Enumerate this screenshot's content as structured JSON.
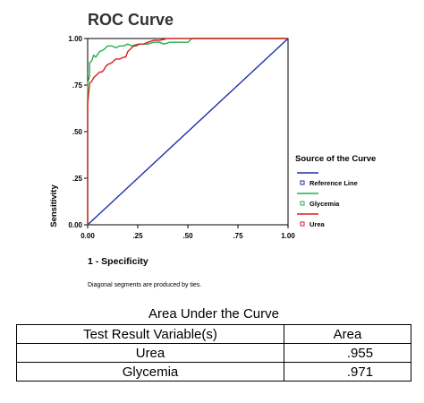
{
  "chart_data": {
    "type": "line",
    "title": "ROC Curve",
    "xlabel": "1 - Specificity",
    "ylabel": "Sensitivity",
    "xlim": [
      0,
      1
    ],
    "ylim": [
      0,
      1
    ],
    "x_ticks": [
      "0.00",
      ".25",
      ".50",
      ".75",
      "1.00"
    ],
    "y_ticks": [
      "0.00",
      ".25",
      ".50",
      ".75",
      "1.00"
    ],
    "grid": false,
    "legend_title": "Source of the Curve",
    "legend_position": "right",
    "footnote": "Diagonal segments are produced by ties.",
    "series": [
      {
        "name": "Reference Line",
        "color": "#1a2fa8",
        "x": [
          0,
          1
        ],
        "y": [
          0,
          1
        ]
      },
      {
        "name": "Glycemia",
        "color": "#22b14c",
        "x": [
          0,
          0,
          0.01,
          0.01,
          0.02,
          0.03,
          0.04,
          0.06,
          0.08,
          0.1,
          0.12,
          0.14,
          0.16,
          0.18,
          0.2,
          0.22,
          0.25,
          0.28,
          0.3,
          0.33,
          0.36,
          0.38,
          0.41,
          0.44,
          0.47,
          0.5,
          0.52,
          1
        ],
        "y": [
          0,
          0.76,
          0.8,
          0.87,
          0.88,
          0.91,
          0.9,
          0.93,
          0.94,
          0.96,
          0.96,
          0.95,
          0.96,
          0.96,
          0.97,
          0.96,
          0.97,
          0.97,
          0.97,
          0.98,
          0.98,
          0.97,
          0.98,
          0.98,
          0.98,
          0.98,
          1,
          1
        ]
      },
      {
        "name": "Urea",
        "color": "#d91e1e",
        "x": [
          0,
          0,
          0.01,
          0.02,
          0.03,
          0.04,
          0.05,
          0.06,
          0.07,
          0.08,
          0.09,
          0.1,
          0.12,
          0.14,
          0.16,
          0.18,
          0.19,
          0.2,
          0.21,
          0.22,
          0.23,
          0.24,
          0.26,
          0.28,
          0.3,
          0.33,
          0.36,
          0.4,
          0.44,
          1
        ],
        "y": [
          0,
          0.65,
          0.76,
          0.77,
          0.79,
          0.8,
          0.81,
          0.82,
          0.82,
          0.83,
          0.85,
          0.86,
          0.87,
          0.89,
          0.89,
          0.9,
          0.9,
          0.93,
          0.94,
          0.95,
          0.96,
          0.96,
          0.97,
          0.97,
          0.98,
          0.99,
          0.99,
          1,
          1,
          1
        ]
      }
    ]
  },
  "auc_table": {
    "caption": "Area Under the Curve",
    "headers": [
      "Test Result Variable(s)",
      "Area"
    ],
    "rows": [
      {
        "variable": "Urea",
        "area": ".955"
      },
      {
        "variable": "Glycemia",
        "area": ".971"
      }
    ]
  }
}
